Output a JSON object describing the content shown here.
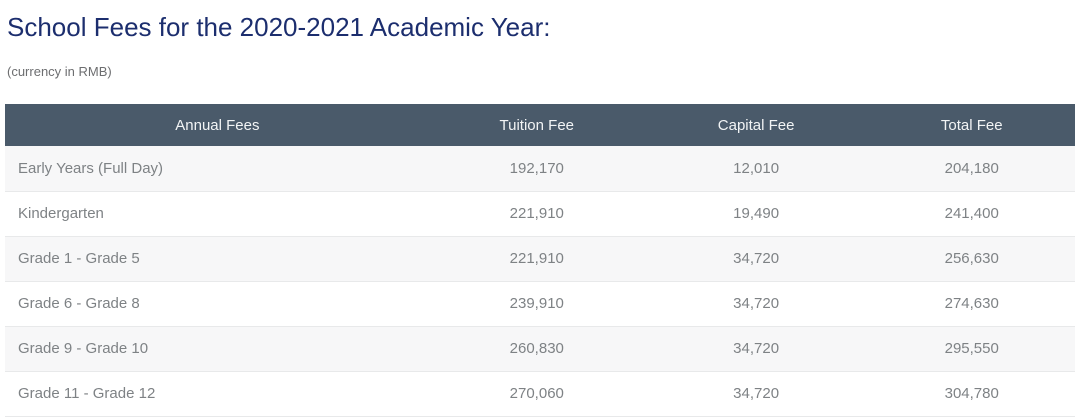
{
  "page": {
    "title": "School Fees for the 2020-2021 Academic Year:",
    "subtitle": "(currency in RMB)"
  },
  "table": {
    "columns": [
      "Annual Fees",
      "Tuition Fee",
      "Capital Fee",
      "Total Fee"
    ],
    "rows": [
      {
        "grade": "Early Years (Full Day)",
        "tuition": "192,170",
        "capital": "12,010",
        "total": "204,180"
      },
      {
        "grade": "Kindergarten",
        "tuition": "221,910",
        "capital": "19,490",
        "total": "241,400"
      },
      {
        "grade": "Grade 1 - Grade 5",
        "tuition": "221,910",
        "capital": "34,720",
        "total": "256,630"
      },
      {
        "grade": "Grade 6 - Grade 8",
        "tuition": "239,910",
        "capital": "34,720",
        "total": "274,630"
      },
      {
        "grade": "Grade 9 - Grade 10",
        "tuition": "260,830",
        "capital": "34,720",
        "total": "295,550"
      },
      {
        "grade": "Grade 11 - Grade 12",
        "tuition": "270,060",
        "capital": "34,720",
        "total": "304,780"
      }
    ]
  },
  "colors": {
    "title_color": "#1c2e6e",
    "subtitle_color": "#6d6e70",
    "header_bg": "#4a5a6a",
    "header_text": "#f2f4f5",
    "row_alt_bg": "#f7f7f8",
    "body_text": "#7e8285",
    "row_border": "#e8e9ea"
  }
}
